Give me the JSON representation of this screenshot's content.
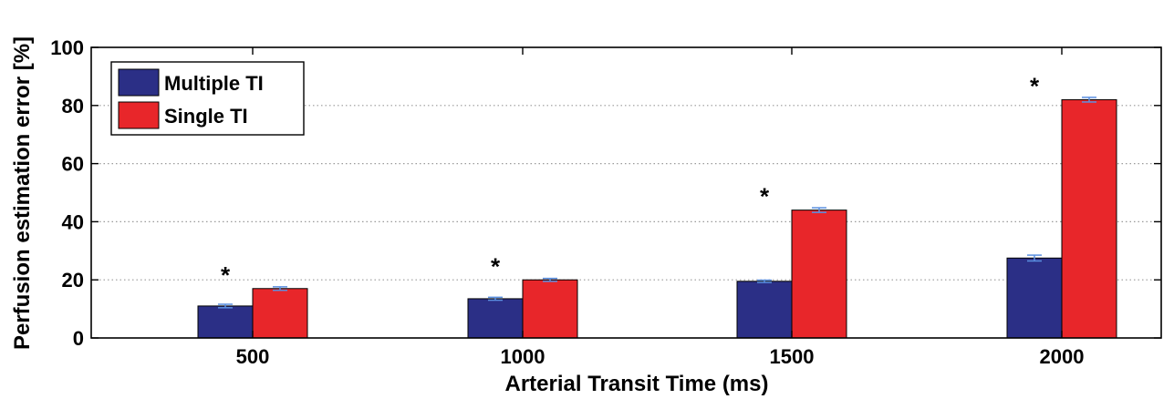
{
  "chart_data": {
    "type": "bar",
    "categories": [
      "500",
      "1000",
      "1500",
      "2000"
    ],
    "series": [
      {
        "name": "Multiple TI",
        "color": "#2b2f86",
        "values": [
          11,
          13.5,
          19.5,
          27.5
        ],
        "errors": [
          0.6,
          0.5,
          0.4,
          1.0
        ]
      },
      {
        "name": "Single TI",
        "color": "#e8262a",
        "values": [
          17,
          20,
          44,
          82
        ],
        "errors": [
          0.6,
          0.5,
          0.8,
          0.8
        ]
      }
    ],
    "significance_markers": [
      {
        "category": "500",
        "symbol": "*",
        "y": 22
      },
      {
        "category": "1000",
        "symbol": "*",
        "y": 25
      },
      {
        "category": "1500",
        "symbol": "*",
        "y": 49
      },
      {
        "category": "2000",
        "symbol": "*",
        "y": 87
      }
    ],
    "xlabel": "Arterial Transit Time (ms)",
    "ylabel": "Perfusion estimation error [%]",
    "ylim": [
      0,
      100
    ],
    "yticks": [
      "0",
      "20",
      "40",
      "60",
      "80",
      "100"
    ],
    "grid": "horizontal-dotted",
    "legend_position": "top-left",
    "error_bar_color": "#5a8fe0"
  }
}
